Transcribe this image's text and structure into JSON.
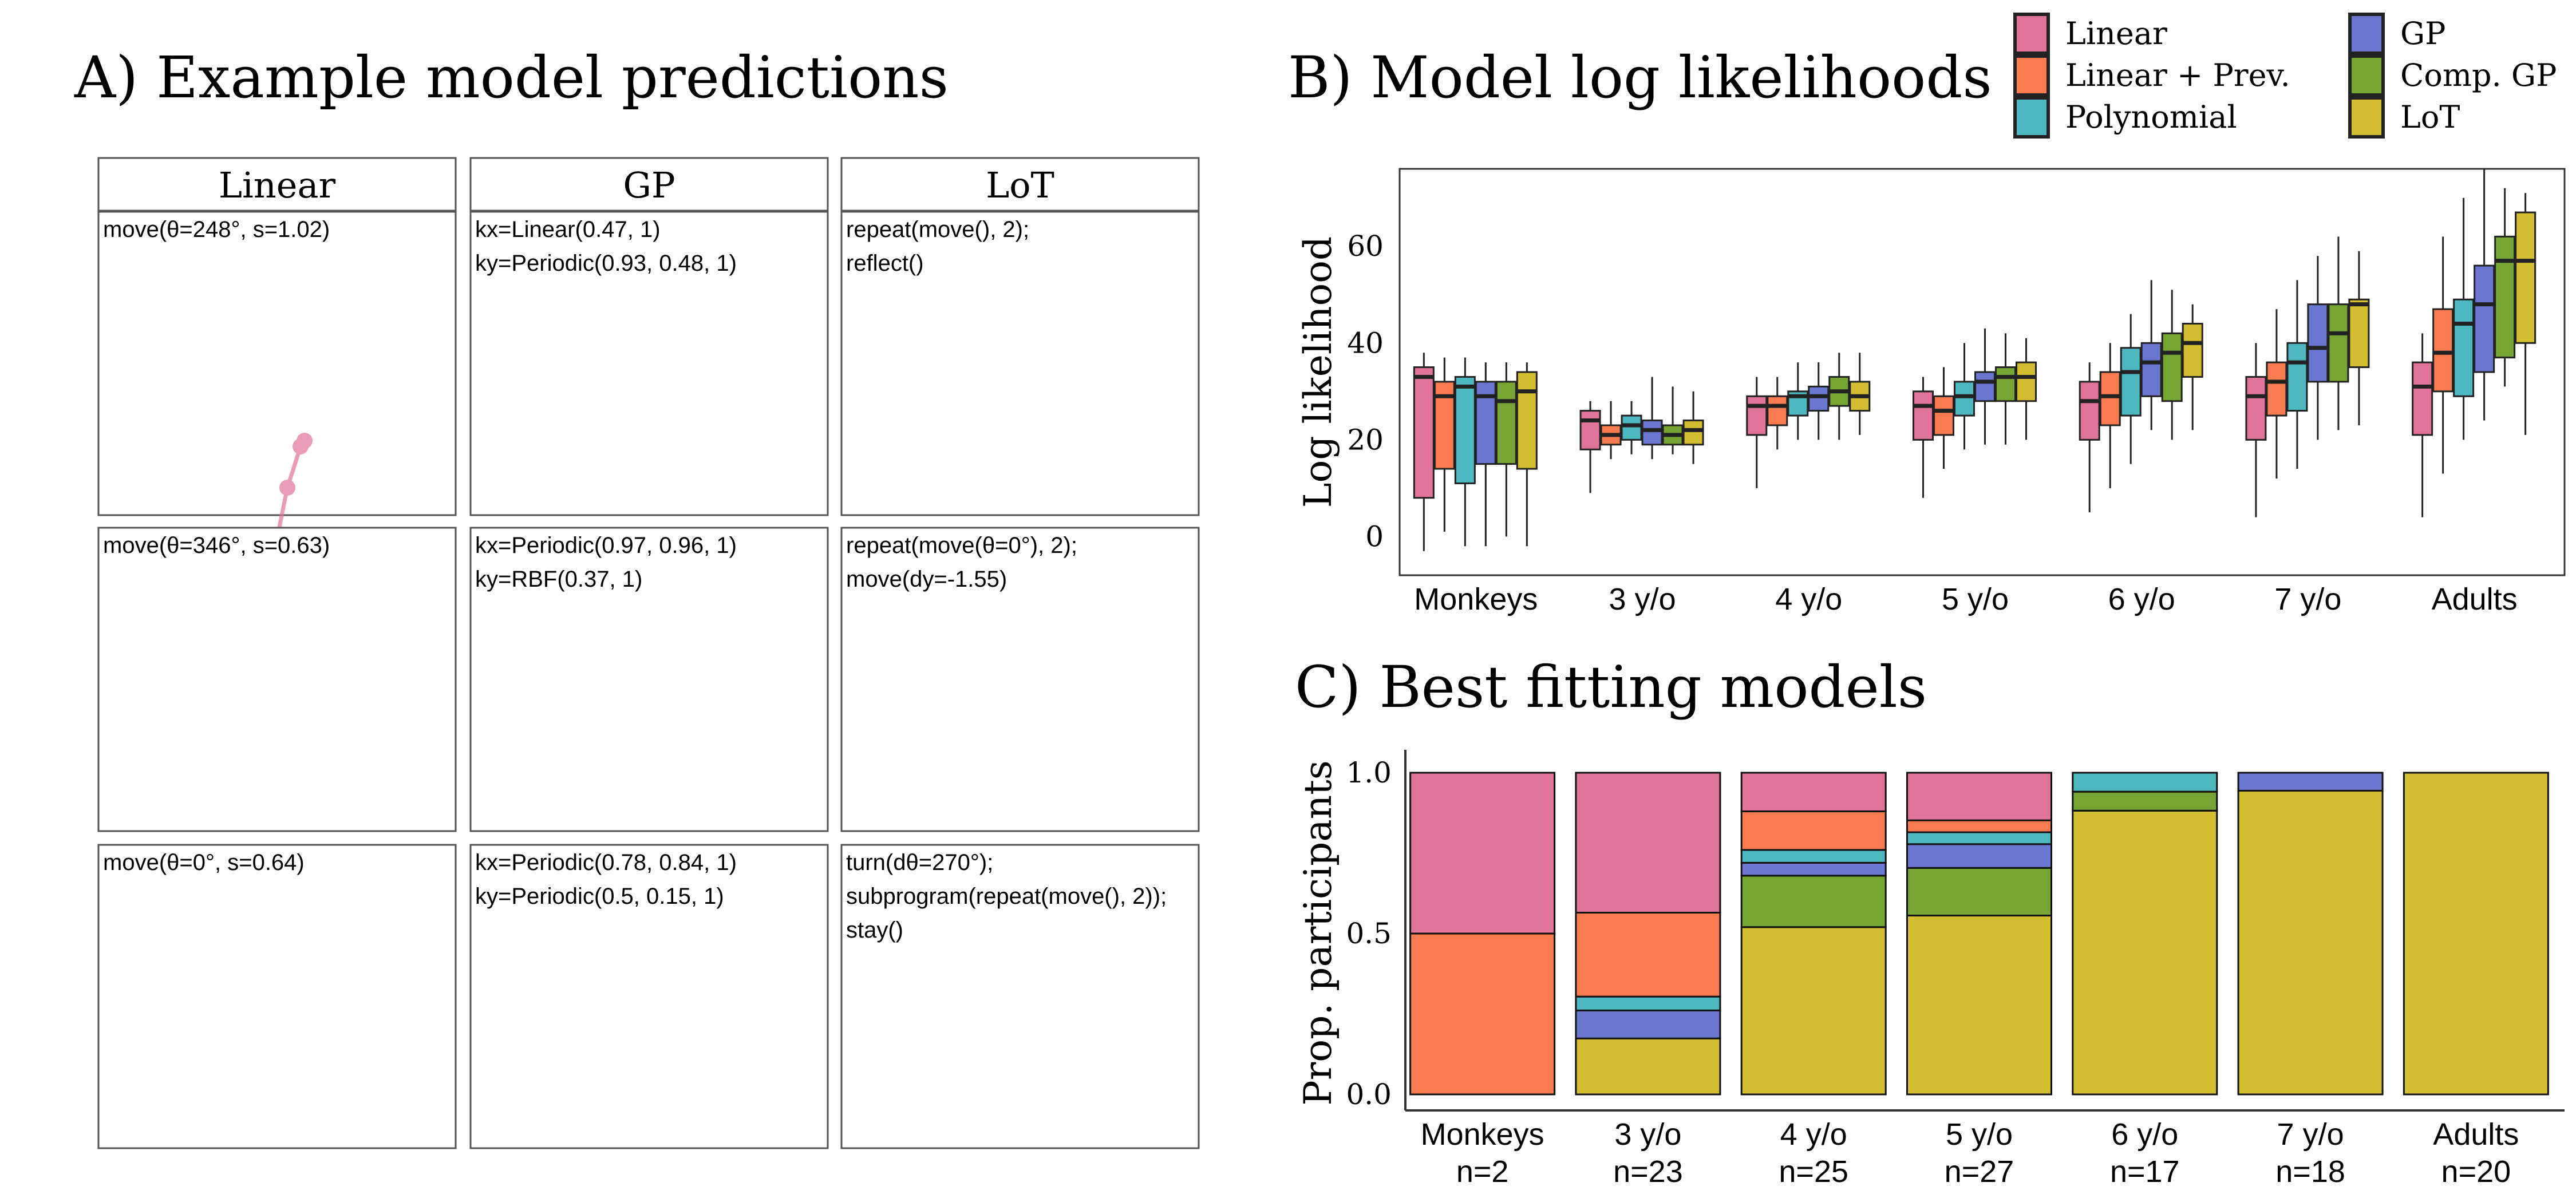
{
  "colors": {
    "Linear": "#E07399",
    "Linear + Prev.": "#F97B4F",
    "Polynomial": "#4DB8C0",
    "GP": "#6A76CF",
    "Comp. GP": "#77A534",
    "LoT": "#D2BE30"
  },
  "panel_a": {
    "title": "A) Example model predictions",
    "columns": [
      "Linear",
      "GP",
      "LoT"
    ],
    "rows": [
      [
        {
          "model": "Linear",
          "code": [
            "move(θ=248°, s=1.02)"
          ]
        },
        {
          "model": "GP",
          "code": [
            "kx=Linear(0.47, 1)",
            "ky=Periodic(0.93, 0.48, 1)"
          ]
        },
        {
          "model": "LoT",
          "code": [
            "repeat(move(), 2);",
            "reflect()"
          ]
        }
      ],
      [
        {
          "model": "Linear",
          "code": [
            "move(θ=346°, s=0.63)"
          ]
        },
        {
          "model": "GP",
          "code": [
            "kx=Periodic(0.97, 0.96, 1)",
            "ky=RBF(0.37, 1)"
          ]
        },
        {
          "model": "LoT",
          "code": [
            "repeat(move(θ=0°), 2);",
            "move(dy=-1.55)"
          ]
        }
      ],
      [
        {
          "model": "Linear",
          "code": [
            "move(θ=0°, s=0.64)"
          ]
        },
        {
          "model": "GP",
          "code": [
            "kx=Periodic(0.78, 0.84, 1)",
            "ky=Periodic(0.5, 0.15, 1)"
          ]
        },
        {
          "model": "LoT",
          "code": [
            "turn(dθ=270°);",
            "subprogram(repeat(move(), 2));",
            "stay()"
          ]
        }
      ]
    ]
  },
  "legend": [
    "Linear",
    "Linear + Prev.",
    "Polynomial",
    "GP",
    "Comp. GP",
    "LoT"
  ],
  "chart_data": [
    {
      "type": "box",
      "title": "B) Model log likelihoods",
      "ylabel": "Log likelihood",
      "ylim": [
        -8,
        76
      ],
      "yticks": [
        0,
        20,
        40,
        60
      ],
      "categories": [
        "Monkeys",
        "3 y/o",
        "4 y/o",
        "5 y/o",
        "6 y/o",
        "7 y/o",
        "Adults"
      ],
      "series": [
        {
          "name": "Linear",
          "boxes": [
            [
              -3,
              8,
              33,
              35,
              38
            ],
            [
              9,
              18,
              24,
              26,
              28
            ],
            [
              10,
              21,
              27,
              29,
              33
            ],
            [
              8,
              20,
              27,
              30,
              33
            ],
            [
              5,
              20,
              28,
              32,
              36
            ],
            [
              4,
              20,
              29,
              33,
              40
            ],
            [
              4,
              21,
              31,
              36,
              42
            ]
          ]
        },
        {
          "name": "Linear + Prev.",
          "boxes": [
            [
              1,
              14,
              29,
              32,
              37
            ],
            [
              16,
              19,
              21,
              23,
              28
            ],
            [
              18,
              23,
              27,
              29,
              33
            ],
            [
              14,
              21,
              26,
              29,
              35
            ],
            [
              10,
              23,
              29,
              34,
              40
            ],
            [
              12,
              25,
              32,
              36,
              47
            ],
            [
              13,
              30,
              38,
              47,
              62
            ]
          ]
        },
        {
          "name": "Polynomial",
          "boxes": [
            [
              -2,
              11,
              31,
              33,
              37
            ],
            [
              17,
              20,
              23,
              25,
              28
            ],
            [
              20,
              25,
              29,
              30,
              36
            ],
            [
              18,
              25,
              29,
              32,
              40
            ],
            [
              15,
              25,
              34,
              39,
              46
            ],
            [
              14,
              26,
              36,
              40,
              53
            ],
            [
              20,
              29,
              44,
              49,
              70
            ]
          ]
        },
        {
          "name": "GP",
          "boxes": [
            [
              -2,
              15,
              29,
              32,
              36
            ],
            [
              16,
              19,
              22,
              24,
              33
            ],
            [
              20,
              26,
              29,
              31,
              36
            ],
            [
              19,
              28,
              32,
              34,
              43
            ],
            [
              22,
              29,
              36,
              40,
              53
            ],
            [
              20,
              32,
              39,
              48,
              58
            ],
            [
              24,
              34,
              48,
              56,
              76
            ]
          ]
        },
        {
          "name": "Comp. GP",
          "boxes": [
            [
              0,
              15,
              28,
              32,
              36
            ],
            [
              17,
              19,
              21,
              23,
              31
            ],
            [
              20,
              27,
              30,
              33,
              38
            ],
            [
              19,
              28,
              33,
              35,
              42
            ],
            [
              20,
              28,
              38,
              42,
              51
            ],
            [
              22,
              32,
              42,
              48,
              62
            ],
            [
              31,
              37,
              57,
              62,
              72
            ]
          ]
        },
        {
          "name": "LoT",
          "boxes": [
            [
              -2,
              14,
              30,
              34,
              36
            ],
            [
              15,
              19,
              22,
              24,
              30
            ],
            [
              21,
              26,
              29,
              32,
              38
            ],
            [
              20,
              28,
              33,
              36,
              41
            ],
            [
              22,
              33,
              40,
              44,
              48
            ],
            [
              23,
              35,
              48,
              49,
              59
            ],
            [
              21,
              40,
              57,
              67,
              71
            ]
          ]
        }
      ]
    },
    {
      "type": "stacked_bar",
      "title": "C) Best fitting models",
      "ylabel": "Prop. participants",
      "ylim": [
        0,
        1
      ],
      "yticks": [
        "0.0",
        "0.5",
        "1.0"
      ],
      "categories": [
        "Monkeys",
        "3 y/o",
        "4 y/o",
        "5 y/o",
        "6 y/o",
        "7 y/o",
        "Adults"
      ],
      "n_labels": [
        "n=2",
        "n=23",
        "n=25",
        "n=27",
        "n=17",
        "n=18",
        "n=20"
      ],
      "stack_order": [
        "LoT",
        "Comp. GP",
        "GP",
        "Polynomial",
        "Linear + Prev.",
        "Linear"
      ],
      "values": [
        {
          "LoT": 0,
          "Comp. GP": 0,
          "GP": 0,
          "Polynomial": 0,
          "Linear + Prev.": 0.5,
          "Linear": 0.5
        },
        {
          "LoT": 0.174,
          "Comp. GP": 0,
          "GP": 0.087,
          "Polynomial": 0.043,
          "Linear + Prev.": 0.261,
          "Linear": 0.435
        },
        {
          "LoT": 0.52,
          "Comp. GP": 0.16,
          "GP": 0.04,
          "Polynomial": 0.04,
          "Linear + Prev.": 0.12,
          "Linear": 0.12
        },
        {
          "LoT": 0.556,
          "Comp. GP": 0.148,
          "GP": 0.074,
          "Polynomial": 0.037,
          "Linear + Prev.": 0.037,
          "Linear": 0.148
        },
        {
          "LoT": 0.882,
          "Comp. GP": 0.059,
          "GP": 0,
          "Polynomial": 0.059,
          "Linear + Prev.": 0,
          "Linear": 0
        },
        {
          "LoT": 0.944,
          "Comp. GP": 0,
          "GP": 0.056,
          "Polynomial": 0,
          "Linear + Prev.": 0,
          "Linear": 0
        },
        {
          "LoT": 1.0,
          "Comp. GP": 0,
          "GP": 0,
          "Polynomial": 0,
          "Linear + Prev.": 0,
          "Linear": 0
        }
      ]
    }
  ]
}
